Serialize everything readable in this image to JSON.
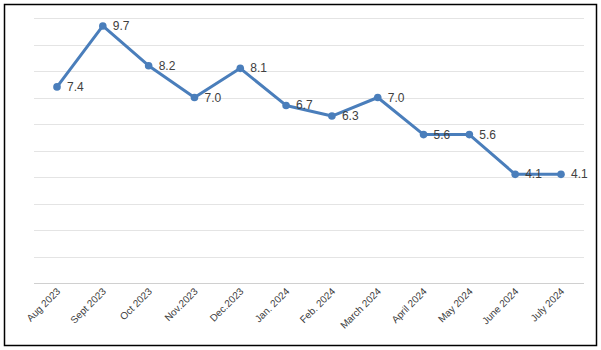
{
  "chart_data": {
    "type": "line",
    "categories": [
      "Aug 2023",
      "Sept 2023",
      "Oct 2023",
      "Nov.2023",
      "Dec.2023",
      "Jan. 2024",
      "Feb. 2024",
      "March 2024",
      "April 2024",
      "May 2024",
      "June 2024",
      "July 2024"
    ],
    "values": [
      7.4,
      9.7,
      8.2,
      7.0,
      8.1,
      6.7,
      6.3,
      7.0,
      5.6,
      5.6,
      4.1,
      4.1
    ],
    "value_labels": [
      "7.4",
      "9.7",
      "8.2",
      "7.0",
      "8.1",
      "6.7",
      "6.3",
      "7.0",
      "5.6",
      "5.6",
      "4.1",
      "4.1"
    ],
    "color": "#4a7ebb",
    "marker": "circle",
    "ylim": [
      0,
      10
    ],
    "yticks": [
      0,
      1,
      2,
      3,
      4,
      5,
      6,
      7,
      8,
      9,
      10
    ],
    "grid": true,
    "data_labels": true,
    "tick_labels": "x"
  }
}
